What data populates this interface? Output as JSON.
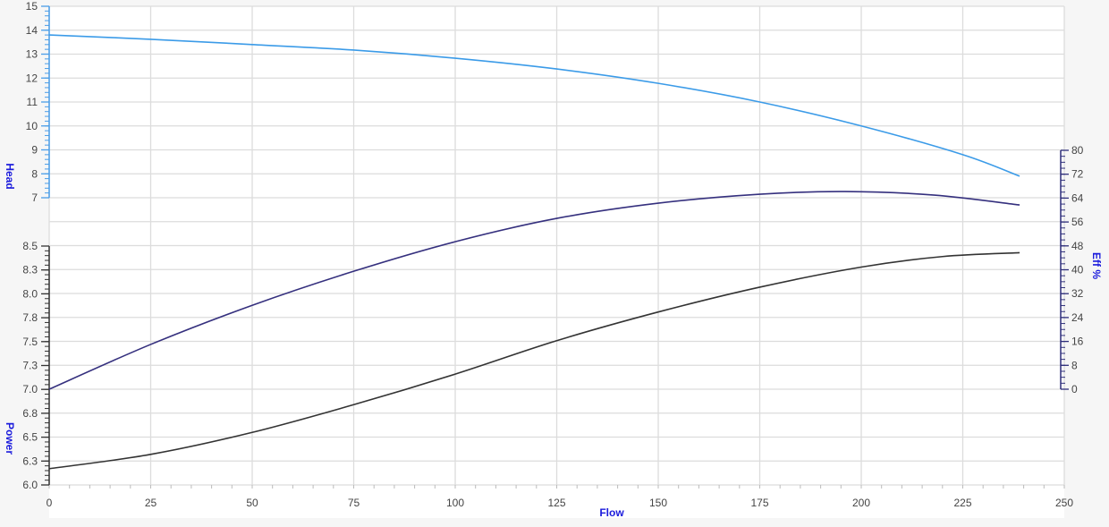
{
  "chart_data": {
    "type": "line",
    "xlabel": "Flow",
    "x_ticks": [
      "0",
      "25",
      "50",
      "75",
      "100",
      "125",
      "150",
      "175",
      "200",
      "225",
      "250"
    ],
    "xlim": [
      0,
      250
    ],
    "grid": true,
    "axes": {
      "head": {
        "label": "Head",
        "ylim": [
          7,
          15
        ],
        "ticks": [
          "7",
          "8",
          "9",
          "10",
          "11",
          "12",
          "13",
          "14",
          "15"
        ],
        "color": "#4a9de8",
        "side": "left-top"
      },
      "power": {
        "label": "Power",
        "ylim": [
          6.0,
          8.5
        ],
        "ticks": [
          "6.0",
          "6.3",
          "6.5",
          "6.8",
          "7.0",
          "7.3",
          "7.5",
          "7.8",
          "8.0",
          "8.3",
          "8.5"
        ],
        "color": "#333333",
        "side": "left-bottom"
      },
      "eff": {
        "label": "Eff %",
        "ylim": [
          0,
          80
        ],
        "ticks": [
          "0",
          "8",
          "16",
          "24",
          "32",
          "40",
          "48",
          "56",
          "64",
          "72",
          "80"
        ],
        "color": "#2d2d7a",
        "side": "right"
      }
    },
    "series": [
      {
        "axis": "head",
        "color": "#3b9be8",
        "x": [
          0,
          25,
          50,
          75,
          100,
          125,
          150,
          175,
          200,
          225,
          239
        ],
        "y": [
          13.8,
          13.62,
          13.4,
          13.17,
          12.83,
          12.38,
          11.78,
          11.0,
          10.0,
          8.8,
          7.9
        ]
      },
      {
        "axis": "eff",
        "color": "#35307e",
        "x": [
          0,
          25,
          50,
          75,
          100,
          125,
          150,
          175,
          196,
          218,
          239
        ],
        "y": [
          0,
          15,
          28.1,
          39.5,
          49.4,
          57.2,
          62.3,
          65.3,
          66.2,
          65,
          61.7
        ]
      },
      {
        "axis": "power",
        "color": "#333333",
        "x": [
          0,
          25,
          50,
          75,
          100,
          125,
          150,
          175,
          200,
          220,
          239
        ],
        "y": [
          6.17,
          6.32,
          6.55,
          6.84,
          7.16,
          7.51,
          7.81,
          8.07,
          8.28,
          8.39,
          8.43
        ]
      }
    ]
  }
}
